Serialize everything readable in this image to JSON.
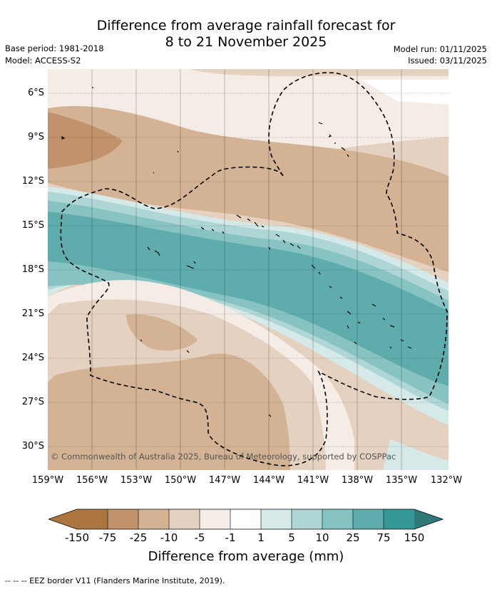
{
  "header": {
    "title_line1": "Difference from average rainfall forecast for",
    "title_line2": "8 to 21 November 2025",
    "base_period": "Base period: 1981-2018",
    "model": "Model: ACCESS-S2",
    "model_run": "Model run: 01/11/2025",
    "issued": "Issued: 03/11/2025"
  },
  "map": {
    "lat_labels": [
      "6°S",
      "9°S",
      "12°S",
      "15°S",
      "18°S",
      "21°S",
      "24°S",
      "27°S",
      "30°S"
    ],
    "lon_labels": [
      "159°W",
      "156°W",
      "153°W",
      "150°W",
      "147°W",
      "144°W",
      "141°W",
      "138°W",
      "135°W",
      "132°W"
    ],
    "attribution": "© Commonwealth of Australia 2025, Bureau of Meteorology, supported by COSPPac",
    "colors": {
      "neg150": "#ac7641",
      "neg75": "#c1926b",
      "neg25": "#d3b394",
      "neg10": "#e5d1c0",
      "neg5": "#f5ece6",
      "neutral": "#ffffff",
      "pos1": "#d4e9e8",
      "pos5": "#aed6d5",
      "pos10": "#86c3c2",
      "pos25": "#5eacac",
      "pos75": "#359897",
      "pos150": "#307979"
    }
  },
  "colorbar": {
    "ticks": [
      "-150",
      "-75",
      "-25",
      "-10",
      "-5",
      "-1",
      "1",
      "5",
      "10",
      "25",
      "75",
      "150"
    ],
    "label": "Difference from average (mm)"
  },
  "footnote": "--  --  -- EEZ border V11 (Flanders Marine Institute, 2019)."
}
